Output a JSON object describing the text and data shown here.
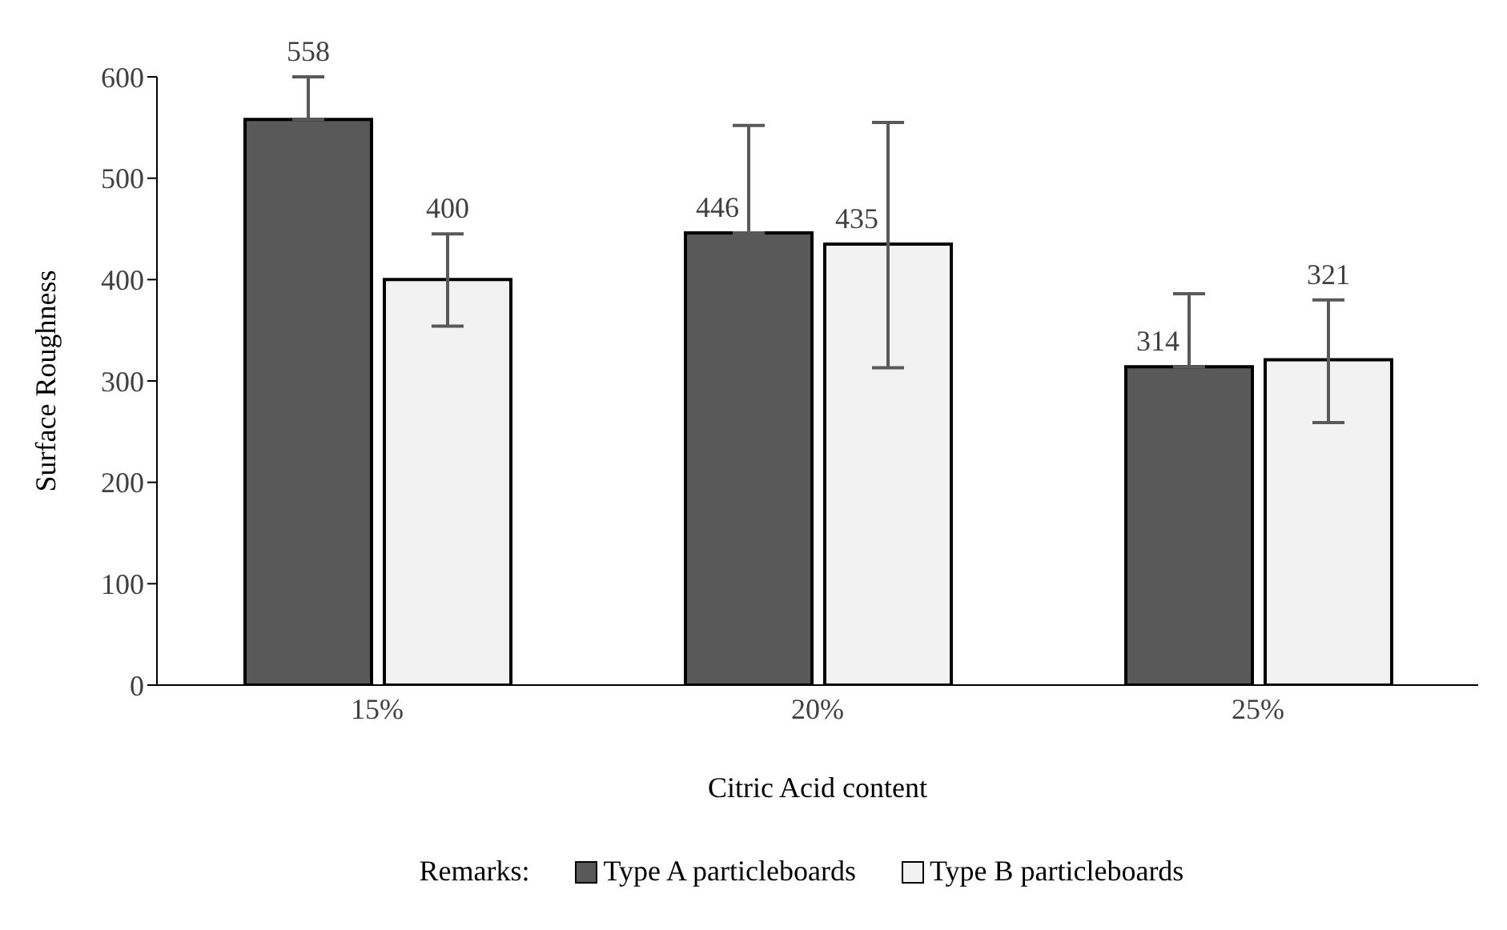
{
  "chart_data": {
    "type": "bar",
    "xlabel": "Citric Acid content",
    "ylabel": "Surface Roughness",
    "legend_title": "Remarks:",
    "categories": [
      "15%",
      "20%",
      "25%"
    ],
    "series": [
      {
        "name": "Type A particleboards",
        "color": "#595959",
        "values": [
          558,
          446,
          314
        ],
        "errors": [
          [
            558,
            600
          ],
          [
            446,
            552
          ],
          [
            314,
            386
          ]
        ]
      },
      {
        "name": "Type B particleboards",
        "color": "#f2f2f2",
        "values": [
          400,
          435,
          321
        ],
        "errors": [
          [
            354,
            445
          ],
          [
            313,
            555
          ],
          [
            259,
            380
          ]
        ]
      }
    ],
    "ylim": [
      0,
      600
    ],
    "yticks": [
      0,
      100,
      200,
      300,
      400,
      500,
      600
    ],
    "data_labels": true,
    "grid": false,
    "legend": "bottom"
  }
}
